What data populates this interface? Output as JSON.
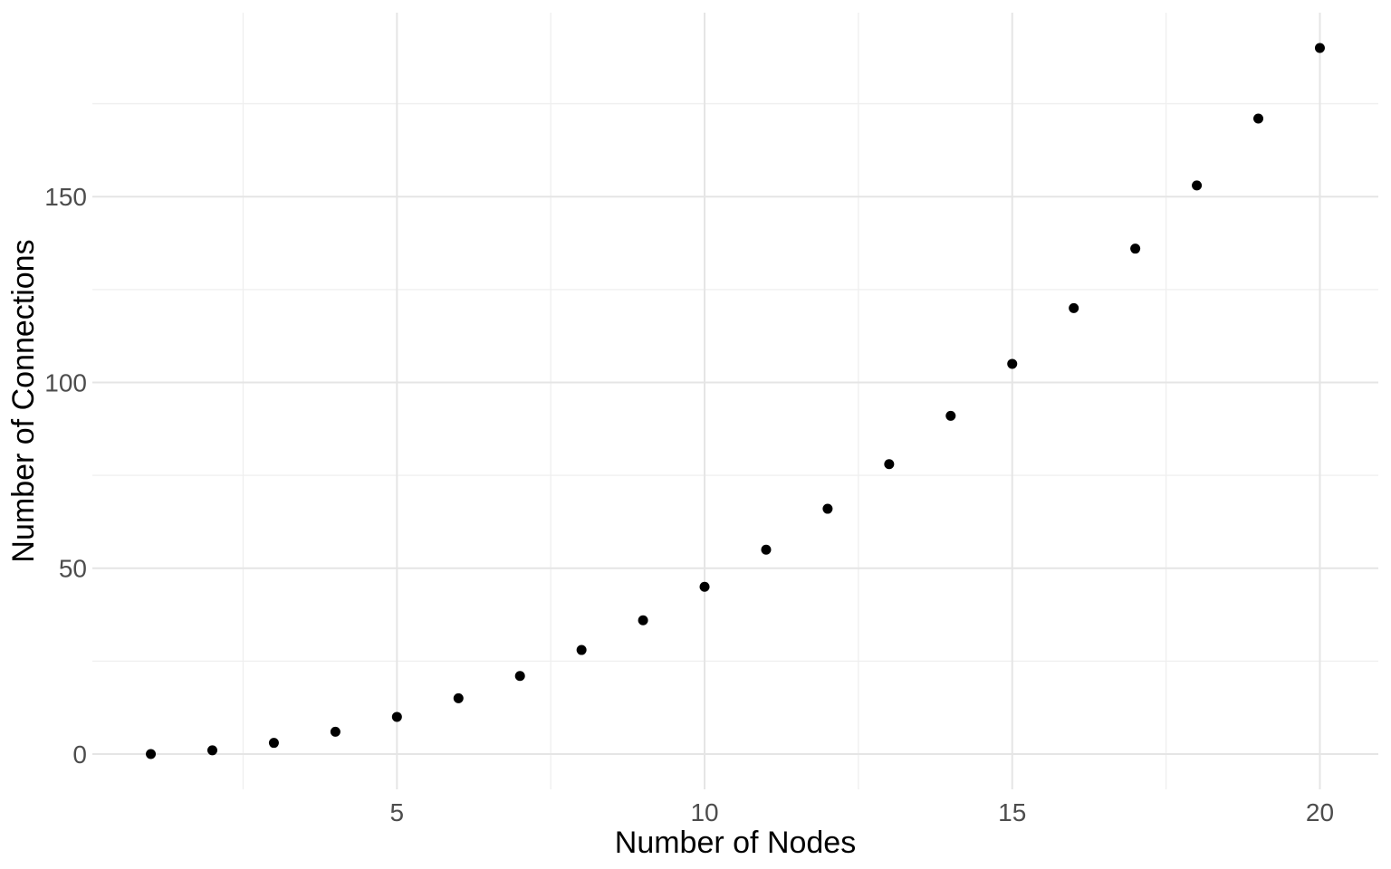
{
  "chart_data": {
    "type": "scatter",
    "title": "",
    "xlabel": "Number of Nodes",
    "ylabel": "Number of Connections",
    "x": [
      1,
      2,
      3,
      4,
      5,
      6,
      7,
      8,
      9,
      10,
      11,
      12,
      13,
      14,
      15,
      16,
      17,
      18,
      19,
      20
    ],
    "y": [
      0,
      1,
      3,
      6,
      10,
      15,
      21,
      28,
      36,
      45,
      55,
      66,
      78,
      91,
      105,
      120,
      136,
      153,
      171,
      190
    ],
    "xlim": [
      0.05,
      20.95
    ],
    "ylim": [
      -9.5,
      199.5
    ],
    "x_ticks": [
      5,
      10,
      15,
      20
    ],
    "y_ticks": [
      0,
      50,
      100,
      150
    ],
    "x_minor_gridlines": [
      2.5,
      7.5,
      12.5,
      17.5
    ],
    "y_minor_gridlines": [
      25,
      75,
      125,
      175
    ],
    "grid": "on",
    "legend": "none",
    "background_color": "#FFFFFF",
    "point_color": "#000000",
    "grid_major_color": "#E5E5E5",
    "grid_minor_color": "#EFEFEF",
    "tick_label_color": "#4D4D4D",
    "axis_title_color": "#000000"
  }
}
